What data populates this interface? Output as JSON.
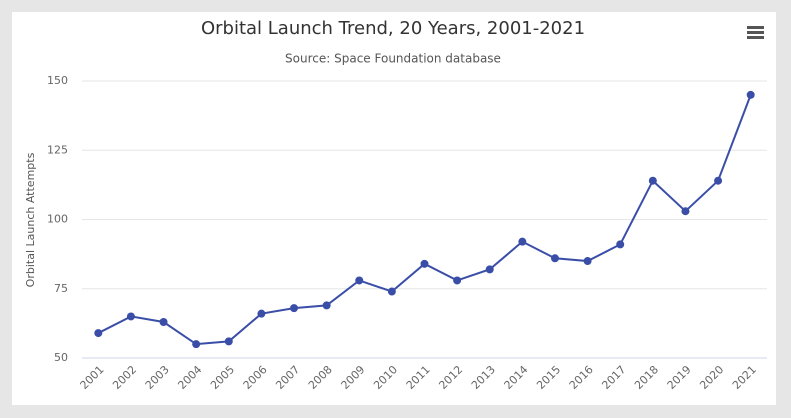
{
  "chart_data": {
    "type": "line",
    "title": "Orbital Launch Trend, 20 Years, 2001-2021",
    "subtitle": "Source: Space Foundation database",
    "y_label": "Orbital Launch Attempts",
    "categories": [
      "2001",
      "2002",
      "2003",
      "2004",
      "2005",
      "2006",
      "2007",
      "2008",
      "2009",
      "2010",
      "2011",
      "2012",
      "2013",
      "2014",
      "2015",
      "2016",
      "2017",
      "2018",
      "2019",
      "2020",
      "2021"
    ],
    "values": [
      59,
      65,
      63,
      55,
      56,
      66,
      68,
      69,
      78,
      74,
      84,
      78,
      82,
      92,
      86,
      85,
      91,
      114,
      103,
      114,
      145
    ],
    "color": "#3a4ea8",
    "ylim": [
      50,
      150
    ],
    "yticks": [
      50,
      75,
      100,
      125,
      150
    ],
    "grid": true
  }
}
